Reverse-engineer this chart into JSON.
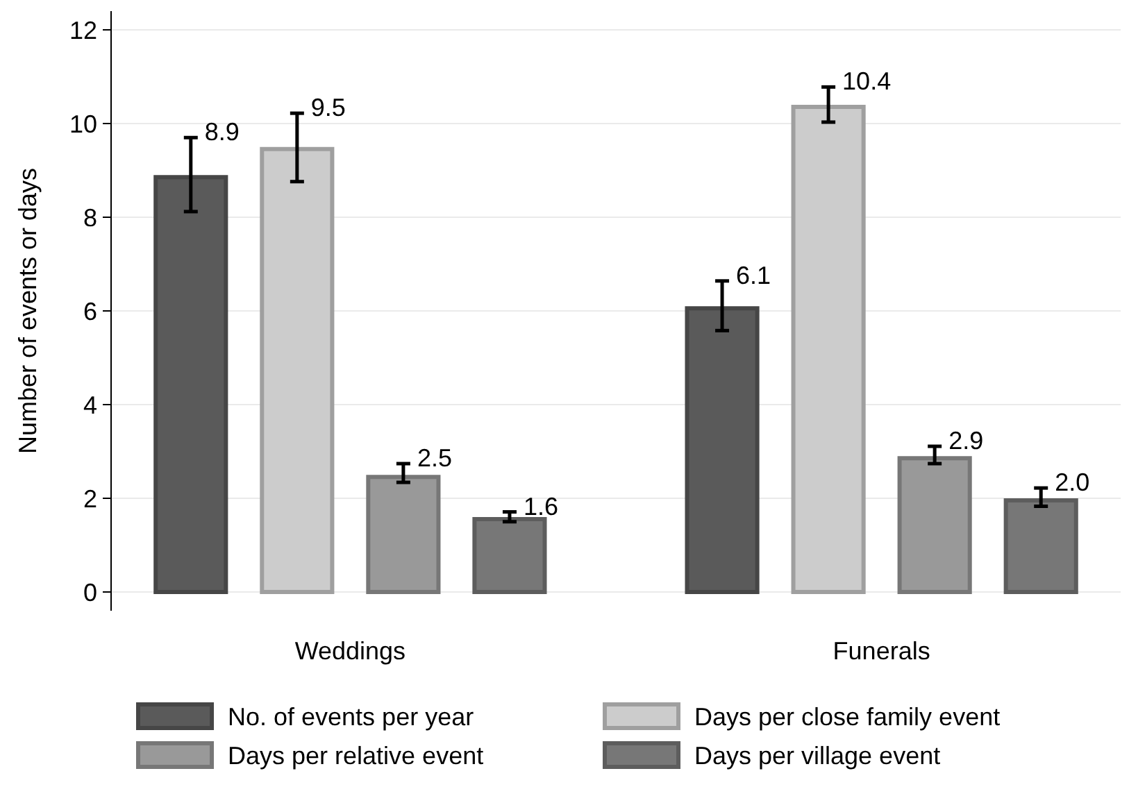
{
  "chart_data": {
    "type": "bar",
    "ylabel": "Number of events or days",
    "categories": [
      "Weddings",
      "Funerals"
    ],
    "series": [
      {
        "name": "No. of events per year",
        "color": "#5a5a5a",
        "values": [
          8.9,
          6.1
        ],
        "errors": [
          [
            8.12,
            9.7
          ],
          [
            5.58,
            6.64
          ]
        ],
        "value_labels": [
          "8.9",
          "6.1"
        ]
      },
      {
        "name": "Days per close family event",
        "color": "#cccccc",
        "values": [
          9.5,
          10.4
        ],
        "errors": [
          [
            8.76,
            10.22
          ],
          [
            10.03,
            10.78
          ]
        ],
        "value_labels": [
          "9.5",
          "10.4"
        ]
      },
      {
        "name": "Days per relative event",
        "color": "#999999",
        "values": [
          2.5,
          2.9
        ],
        "errors": [
          [
            2.34,
            2.74
          ],
          [
            2.74,
            3.11
          ]
        ],
        "value_labels": [
          "2.5",
          "2.9"
        ]
      },
      {
        "name": "Days per village event",
        "color": "#777777",
        "values": [
          1.6,
          2.0
        ],
        "errors": [
          [
            1.5,
            1.71
          ],
          [
            1.83,
            2.22
          ]
        ],
        "value_labels": [
          "1.6",
          "2.0"
        ]
      }
    ],
    "ylim": [
      -0.4,
      12.4
    ],
    "yticks": [
      0,
      2,
      4,
      6,
      8,
      10,
      12
    ],
    "grid": "y",
    "legend": "bottom"
  }
}
